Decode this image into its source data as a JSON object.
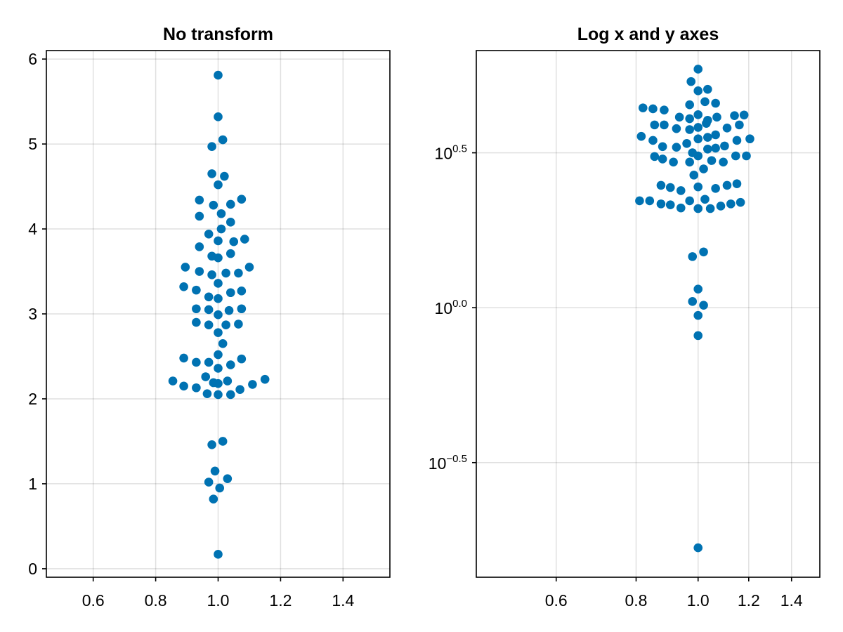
{
  "chart_data": [
    {
      "type": "scatter",
      "title": "No transform",
      "xlim": [
        0.45,
        1.55
      ],
      "ylim": [
        -0.1,
        6.1
      ],
      "x_scale": "linear",
      "y_scale": "linear",
      "grid": true,
      "xticks": [
        0.6,
        0.8,
        1.0,
        1.2,
        1.4
      ],
      "xtick_labels": [
        "0.6",
        "0.8",
        "1.0",
        "1.2",
        "1.4"
      ],
      "yticks": [
        0,
        1,
        2,
        3,
        4,
        5,
        6
      ],
      "ytick_labels": [
        "0",
        "1",
        "2",
        "3",
        "4",
        "5",
        "6"
      ],
      "color": "#0072b2",
      "points": [
        [
          1.0,
          5.81
        ],
        [
          1.0,
          5.32
        ],
        [
          1.015,
          5.05
        ],
        [
          0.98,
          4.97
        ],
        [
          0.98,
          4.65
        ],
        [
          1.02,
          4.62
        ],
        [
          1.0,
          4.52
        ],
        [
          0.94,
          4.34
        ],
        [
          0.985,
          4.28
        ],
        [
          1.04,
          4.29
        ],
        [
          1.075,
          4.35
        ],
        [
          0.94,
          4.15
        ],
        [
          1.01,
          4.18
        ],
        [
          1.04,
          4.08
        ],
        [
          0.97,
          3.94
        ],
        [
          1.01,
          4.0
        ],
        [
          1.05,
          3.85
        ],
        [
          1.085,
          3.88
        ],
        [
          1.0,
          3.86
        ],
        [
          0.94,
          3.79
        ],
        [
          0.98,
          3.68
        ],
        [
          1.0,
          3.66
        ],
        [
          1.04,
          3.71
        ],
        [
          0.895,
          3.55
        ],
        [
          0.94,
          3.5
        ],
        [
          0.98,
          3.46
        ],
        [
          1.025,
          3.48
        ],
        [
          1.065,
          3.48
        ],
        [
          1.1,
          3.55
        ],
        [
          0.89,
          3.32
        ],
        [
          0.93,
          3.28
        ],
        [
          0.97,
          3.2
        ],
        [
          1.0,
          3.36
        ],
        [
          1.0,
          3.18
        ],
        [
          1.04,
          3.25
        ],
        [
          1.075,
          3.27
        ],
        [
          0.93,
          3.06
        ],
        [
          0.97,
          3.05
        ],
        [
          1.0,
          2.99
        ],
        [
          1.035,
          3.04
        ],
        [
          1.075,
          3.06
        ],
        [
          0.93,
          2.9
        ],
        [
          0.97,
          2.87
        ],
        [
          1.0,
          2.78
        ],
        [
          1.025,
          2.87
        ],
        [
          1.065,
          2.88
        ],
        [
          1.015,
          2.65
        ],
        [
          1.0,
          2.52
        ],
        [
          0.89,
          2.48
        ],
        [
          0.93,
          2.43
        ],
        [
          0.97,
          2.43
        ],
        [
          1.0,
          2.36
        ],
        [
          1.04,
          2.4
        ],
        [
          1.075,
          2.47
        ],
        [
          0.855,
          2.21
        ],
        [
          0.89,
          2.15
        ],
        [
          0.93,
          2.13
        ],
        [
          0.96,
          2.26
        ],
        [
          0.985,
          2.19
        ],
        [
          1.0,
          2.05
        ],
        [
          1.03,
          2.21
        ],
        [
          1.04,
          2.05
        ],
        [
          1.07,
          2.11
        ],
        [
          0.965,
          2.06
        ],
        [
          1.11,
          2.17
        ],
        [
          1.15,
          2.23
        ],
        [
          1.0,
          2.18
        ],
        [
          1.015,
          1.5
        ],
        [
          0.98,
          1.46
        ],
        [
          0.99,
          1.15
        ],
        [
          0.97,
          1.02
        ],
        [
          1.03,
          1.06
        ],
        [
          1.005,
          0.95
        ],
        [
          0.985,
          0.82
        ],
        [
          1.0,
          0.17
        ]
      ]
    },
    {
      "type": "scatter",
      "title": "Log x and y axes",
      "xlim": [
        0.45,
        1.55
      ],
      "ylim": [
        -0.87,
        0.83
      ],
      "x_scale": "log",
      "y_scale": "log",
      "grid": true,
      "xticks": [
        0.6,
        0.8,
        1.0,
        1.2,
        1.4
      ],
      "xtick_labels": [
        "0.6",
        "0.8",
        "1.0",
        "1.2",
        "1.4"
      ],
      "yticks_log10": [
        0.5,
        0.0,
        -0.5
      ],
      "ytick_labels": [
        {
          "base": "10",
          "exp": "0.5"
        },
        {
          "base": "10",
          "exp": "0.0"
        },
        {
          "base": "10",
          "exp": "−0.5"
        }
      ],
      "color": "#0072b2",
      "points_log10": [
        [
          1.0,
          0.77
        ],
        [
          0.975,
          0.73
        ],
        [
          1.0,
          0.7
        ],
        [
          1.035,
          0.705
        ],
        [
          0.97,
          0.655
        ],
        [
          1.025,
          0.665
        ],
        [
          1.065,
          0.66
        ],
        [
          0.82,
          0.645
        ],
        [
          0.85,
          0.642
        ],
        [
          0.885,
          0.638
        ],
        [
          0.935,
          0.615
        ],
        [
          0.97,
          0.61
        ],
        [
          1.0,
          0.623
        ],
        [
          1.035,
          0.605
        ],
        [
          1.07,
          0.615
        ],
        [
          1.14,
          0.62
        ],
        [
          1.18,
          0.622
        ],
        [
          0.855,
          0.59
        ],
        [
          0.885,
          0.59
        ],
        [
          0.925,
          0.578
        ],
        [
          0.97,
          0.575
        ],
        [
          1.0,
          0.582
        ],
        [
          1.03,
          0.595
        ],
        [
          1.065,
          0.558
        ],
        [
          1.11,
          0.58
        ],
        [
          1.16,
          0.59
        ],
        [
          0.815,
          0.553
        ],
        [
          0.85,
          0.54
        ],
        [
          0.88,
          0.52
        ],
        [
          0.925,
          0.518
        ],
        [
          0.96,
          0.53
        ],
        [
          1.0,
          0.545
        ],
        [
          1.035,
          0.55
        ],
        [
          1.065,
          0.515
        ],
        [
          1.1,
          0.522
        ],
        [
          1.15,
          0.54
        ],
        [
          1.205,
          0.545
        ],
        [
          0.855,
          0.488
        ],
        [
          0.88,
          0.48
        ],
        [
          0.915,
          0.47
        ],
        [
          0.97,
          0.47
        ],
        [
          0.98,
          0.5
        ],
        [
          1.0,
          0.49
        ],
        [
          1.035,
          0.512
        ],
        [
          1.05,
          0.475
        ],
        [
          1.095,
          0.47
        ],
        [
          1.145,
          0.49
        ],
        [
          1.19,
          0.49
        ],
        [
          0.875,
          0.395
        ],
        [
          0.905,
          0.388
        ],
        [
          0.94,
          0.378
        ],
        [
          0.985,
          0.428
        ],
        [
          1.0,
          0.39
        ],
        [
          1.02,
          0.448
        ],
        [
          1.065,
          0.385
        ],
        [
          1.11,
          0.395
        ],
        [
          1.15,
          0.4
        ],
        [
          0.81,
          0.345
        ],
        [
          0.84,
          0.345
        ],
        [
          0.875,
          0.335
        ],
        [
          0.905,
          0.332
        ],
        [
          0.94,
          0.322
        ],
        [
          0.97,
          0.345
        ],
        [
          1.0,
          0.32
        ],
        [
          1.025,
          0.35
        ],
        [
          1.045,
          0.32
        ],
        [
          1.085,
          0.328
        ],
        [
          1.125,
          0.335
        ],
        [
          1.165,
          0.34
        ],
        [
          1.02,
          0.18
        ],
        [
          0.98,
          0.165
        ],
        [
          1.0,
          0.06
        ],
        [
          0.98,
          0.02
        ],
        [
          1.02,
          0.008
        ],
        [
          1.0,
          -0.025
        ],
        [
          1.0,
          -0.09
        ],
        [
          1.0,
          -0.775
        ]
      ]
    }
  ]
}
